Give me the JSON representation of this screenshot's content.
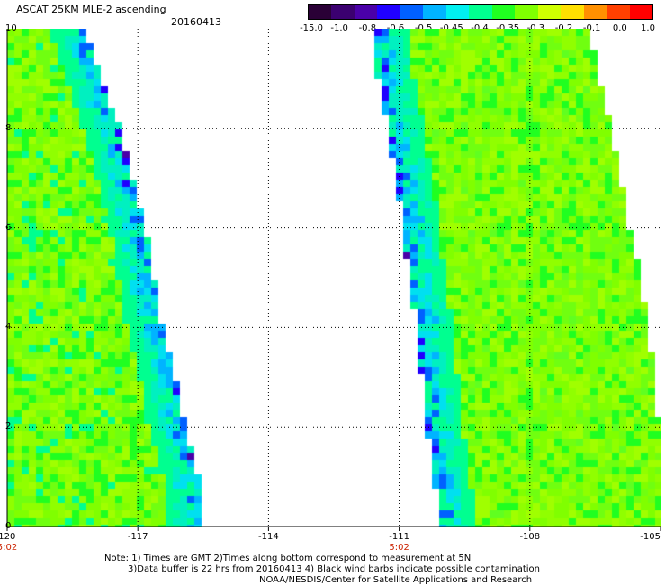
{
  "header": {
    "title": "ASCAT 25KM MLE-2 ascending",
    "date": "20160413"
  },
  "colorbar": {
    "labels": [
      "-15.0",
      "-1.0",
      "-0.8",
      "-0.6",
      "-0.5",
      "-0.45",
      "-0.4",
      "-0.35",
      "-0.3",
      "-0.2",
      "-0.1",
      "0.0",
      "1.0"
    ],
    "colors": [
      "#2a0036",
      "#3b0070",
      "#4a00a8",
      "#2000ff",
      "#0060ff",
      "#00b4ff",
      "#00f0f0",
      "#00ff90",
      "#20ff20",
      "#80ff00",
      "#d0ff00",
      "#ffe000",
      "#ff9000",
      "#ff4000",
      "#ff0000"
    ]
  },
  "chart_data": {
    "type": "heatmap",
    "title": "ASCAT 25KM MLE-2 ascending",
    "date": "20160413",
    "x_ticks": [
      "-120",
      "-117",
      "-114",
      "-111",
      "-108",
      "-105"
    ],
    "y_ticks": [
      "0",
      "2",
      "4",
      "6",
      "8",
      "10"
    ],
    "xlim": [
      -120,
      -105
    ],
    "ylim": [
      0,
      10
    ],
    "grid": true,
    "times": [
      {
        "label": "5:02",
        "lon": -120
      },
      {
        "label": "5:02",
        "lon": -111
      }
    ],
    "swaths": [
      {
        "name": "west",
        "edges": [
          {
            "lat": 10,
            "west": -120,
            "east": -118.3
          },
          {
            "lat": 9,
            "west": -120,
            "east": -117.9
          },
          {
            "lat": 8,
            "west": -120,
            "east": -117.5
          },
          {
            "lat": 7,
            "west": -120,
            "east": -117.2
          },
          {
            "lat": 6,
            "west": -120,
            "east": -116.9
          },
          {
            "lat": 5,
            "west": -120,
            "east": -116.7
          },
          {
            "lat": 4,
            "west": -120,
            "east": -116.5
          },
          {
            "lat": 3,
            "west": -120,
            "east": -116.2
          },
          {
            "lat": 2,
            "west": -120,
            "east": -116.0
          },
          {
            "lat": 1,
            "west": -120,
            "east": -115.7
          },
          {
            "lat": 0,
            "west": -120,
            "east": -115.6
          }
        ]
      },
      {
        "name": "east",
        "edges": [
          {
            "lat": 10,
            "west": -111.5,
            "east": -106.7
          },
          {
            "lat": 9,
            "west": -111.4,
            "east": -106.5
          },
          {
            "lat": 8,
            "west": -111.2,
            "east": -106.2
          },
          {
            "lat": 7,
            "west": -111.0,
            "east": -106.0
          },
          {
            "lat": 6,
            "west": -110.8,
            "east": -105.8
          },
          {
            "lat": 5,
            "west": -110.7,
            "east": -105.5
          },
          {
            "lat": 4,
            "west": -110.5,
            "east": -105.4
          },
          {
            "lat": 3,
            "west": -110.4,
            "east": -105.2
          },
          {
            "lat": 2,
            "west": -110.3,
            "east": -105.1
          },
          {
            "lat": 1,
            "west": -110.1,
            "east": -105.0
          },
          {
            "lat": 0,
            "west": -110.0,
            "east": -105.0
          }
        ]
      }
    ]
  },
  "notes": {
    "line1": "Note: 1) Times are GMT 2)Times along bottom correspond to measurement at 5N",
    "line2": "3)Data buffer is 22 hrs from 20160413 4) Black wind barbs indicate possible contamination",
    "line3": "NOAA/NESDIS/Center for Satellite Applications and Research"
  }
}
